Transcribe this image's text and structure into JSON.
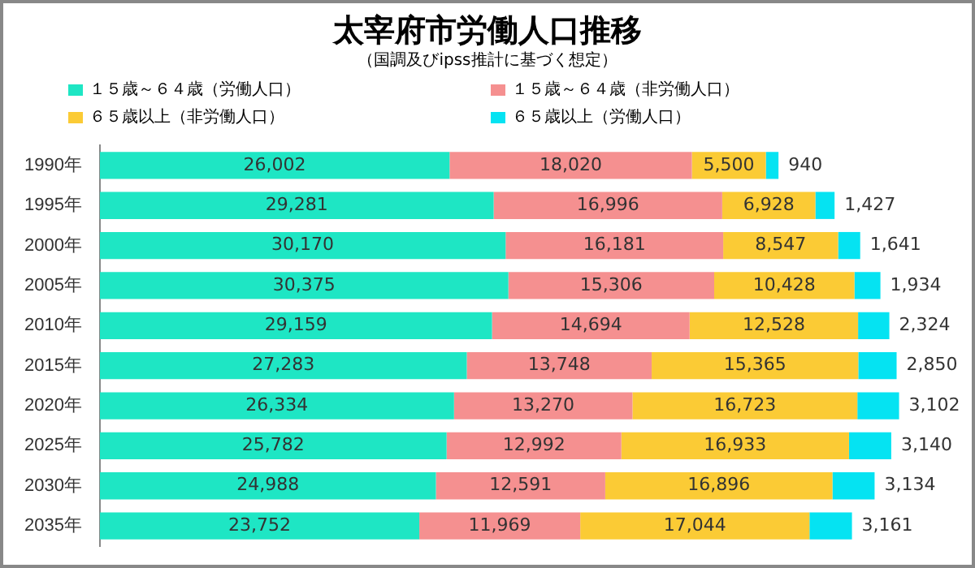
{
  "chart_data": {
    "type": "bar",
    "orientation": "horizontal",
    "stacked": true,
    "title": "太宰府市労働人口推移",
    "subtitle": "（国調及びipss推計に基づく想定）",
    "categories": [
      "1990年",
      "1995年",
      "2000年",
      "2005年",
      "2010年",
      "2015年",
      "2020年",
      "2025年",
      "2030年",
      "2035年"
    ],
    "series": [
      {
        "name": "１５歳～６４歳（労働人口）",
        "color": "#1ee6c4",
        "values": [
          26002,
          29281,
          30170,
          30375,
          29159,
          27283,
          26334,
          25782,
          24988,
          23752
        ],
        "value_labels": [
          "26,002",
          "29,281",
          "30,170",
          "30,375",
          "29,159",
          "27,283",
          "26,334",
          "25,782",
          "24,988",
          "23,752"
        ]
      },
      {
        "name": "１５歳～６４歳（非労働人口）",
        "color": "#f59090",
        "values": [
          18020,
          16996,
          16181,
          15306,
          14694,
          13748,
          13270,
          12992,
          12591,
          11969
        ],
        "value_labels": [
          "18,020",
          "16,996",
          "16,181",
          "15,306",
          "14,694",
          "13,748",
          "13,270",
          "12,992",
          "12,591",
          "11,969"
        ]
      },
      {
        "name": "６５歳以上（非労働人口）",
        "color": "#fbcb35",
        "values": [
          5500,
          6928,
          8547,
          10428,
          12528,
          15365,
          16723,
          16933,
          16896,
          17044
        ],
        "value_labels": [
          "5,500",
          "6,928",
          "8,547",
          "10,428",
          "12,528",
          "15,365",
          "16,723",
          "16,933",
          "16,896",
          "17,044"
        ]
      },
      {
        "name": "６５歳以上（労働人口）",
        "color": "#05e3f2",
        "values": [
          940,
          1427,
          1641,
          1934,
          2324,
          2850,
          3102,
          3140,
          3134,
          3161
        ],
        "value_labels": [
          "940",
          "1,427",
          "1,641",
          "1,934",
          "2,324",
          "2,850",
          "3,102",
          "3,140",
          "3,134",
          "3,161"
        ]
      }
    ],
    "legend": "top",
    "grid": false
  }
}
